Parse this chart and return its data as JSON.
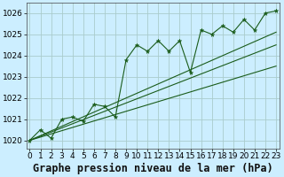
{
  "xlabel": "Graphe pression niveau de la mer (hPa)",
  "bg_color": "#cceeff",
  "grid_color": "#aacccc",
  "line_color": "#1a5c1a",
  "x_values": [
    0,
    1,
    2,
    3,
    4,
    5,
    6,
    7,
    8,
    9,
    10,
    11,
    12,
    13,
    14,
    15,
    16,
    17,
    18,
    19,
    20,
    21,
    22,
    23
  ],
  "y_main": [
    1020.0,
    1020.5,
    1020.1,
    1021.0,
    1021.1,
    1020.9,
    1021.7,
    1021.6,
    1021.1,
    1023.8,
    1024.5,
    1024.2,
    1024.7,
    1024.2,
    1024.7,
    1023.2,
    1025.2,
    1025.0,
    1025.4,
    1025.1,
    1025.7,
    1025.2,
    1026.0,
    1026.1
  ],
  "trend1_y": [
    1020.0,
    1023.5
  ],
  "trend2_y": [
    1020.0,
    1024.5
  ],
  "trend3_y": [
    1020.0,
    1025.1
  ],
  "ylim_min": 1019.6,
  "ylim_max": 1026.5,
  "xlim_min": -0.3,
  "xlim_max": 23.3,
  "ytick_values": [
    1020,
    1021,
    1022,
    1023,
    1024,
    1025,
    1026
  ],
  "xtick_labels": [
    "0",
    "1",
    "2",
    "3",
    "4",
    "5",
    "6",
    "7",
    "8",
    "9",
    "10",
    "11",
    "12",
    "13",
    "14",
    "15",
    "16",
    "17",
    "18",
    "19",
    "20",
    "21",
    "22",
    "23"
  ],
  "tick_fontsize": 6.5,
  "xlabel_fontsize": 8.5
}
